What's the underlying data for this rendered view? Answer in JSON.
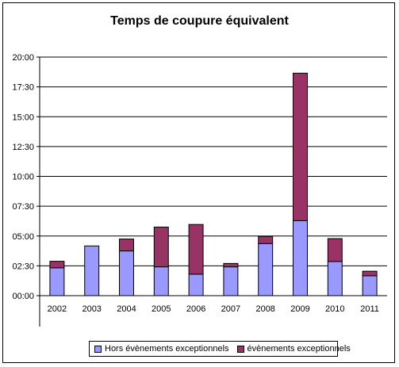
{
  "chart_data": {
    "type": "bar",
    "stacked": true,
    "title": "Temps de coupure équivalent",
    "categories": [
      "2002",
      "2003",
      "2004",
      "2005",
      "2006",
      "2007",
      "2008",
      "2009",
      "2010",
      "2011"
    ],
    "y_tick_labels": [
      "00:00",
      "02:30",
      "05:00",
      "07:30",
      "10:00",
      "12:30",
      "15:00",
      "17:30",
      "20:00"
    ],
    "ylim": [
      0,
      1200
    ],
    "y_unit": "minutes",
    "grid": true,
    "legend_position": "bottom",
    "series": [
      {
        "name": "Hors évènements exceptionnels",
        "color": "#9999ff",
        "values": [
          140,
          250,
          225,
          145,
          108,
          145,
          262,
          377,
          172,
          100
        ]
      },
      {
        "name": "évènements exceptionnels",
        "color": "#993366",
        "values": [
          33,
          0,
          60,
          200,
          250,
          17,
          36,
          742,
          115,
          23
        ]
      }
    ]
  }
}
